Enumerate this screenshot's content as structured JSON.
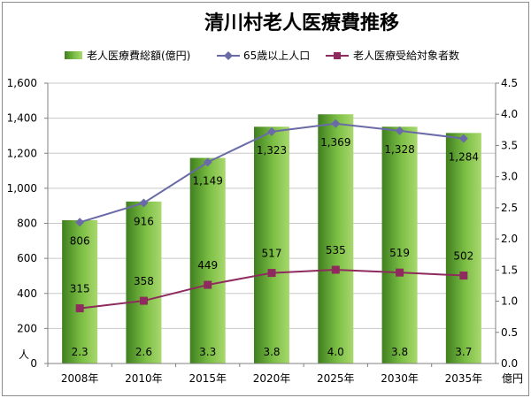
{
  "chart_data": {
    "type": "bar+line",
    "title": "清川村老人医療費推移",
    "categories": [
      "2008年",
      "2010年",
      "2015年",
      "2020年",
      "2025年",
      "2030年",
      "2035年"
    ],
    "left_axis": {
      "unit_label": "人",
      "ylim": [
        0,
        1600
      ],
      "ticks": [
        "0",
        "200",
        "400",
        "600",
        "800",
        "1,000",
        "1,200",
        "1,400",
        "1,600"
      ]
    },
    "right_axis": {
      "unit_label": "億円",
      "ylim": [
        0,
        4.5
      ],
      "ticks": [
        "0.0",
        "0.5",
        "1.0",
        "1.5",
        "2.0",
        "2.5",
        "3.0",
        "3.5",
        "4.0",
        "4.5"
      ]
    },
    "grid": true,
    "legend_position": "top",
    "series": [
      {
        "name": "老人医療費総額(億円)",
        "kind": "bar",
        "axis": "right",
        "color": "#6fb23a",
        "values": [
          2.3,
          2.6,
          3.3,
          3.8,
          4.0,
          3.8,
          3.7
        ],
        "labels": [
          "2.3",
          "2.6",
          "3.3",
          "3.8",
          "4.0",
          "3.8",
          "3.7"
        ]
      },
      {
        "name": "65歳以上人口",
        "kind": "line",
        "axis": "left",
        "color": "#6a6aa8",
        "marker": "diamond",
        "values": [
          806,
          916,
          1149,
          1323,
          1369,
          1328,
          1284
        ],
        "labels": [
          "806",
          "916",
          "1,149",
          "1,323",
          "1,369",
          "1,328",
          "1,284"
        ]
      },
      {
        "name": "老人医療受給対象者数",
        "kind": "line",
        "axis": "left",
        "color": "#8e2a5e",
        "marker": "square",
        "values": [
          315,
          358,
          449,
          517,
          535,
          519,
          502
        ],
        "labels": [
          "315",
          "358",
          "449",
          "517",
          "535",
          "519",
          "502"
        ]
      }
    ]
  }
}
